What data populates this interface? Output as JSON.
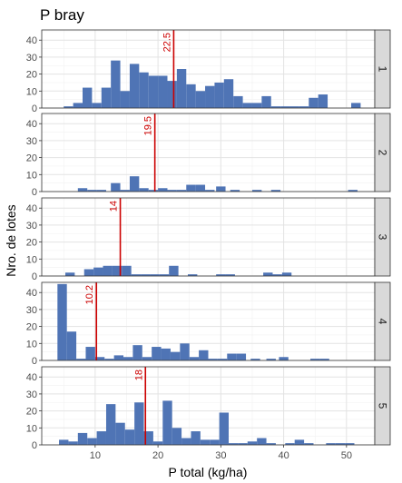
{
  "chart_data": {
    "type": "bar",
    "title": "P bray",
    "xlabel": "P total (kg/ha)",
    "ylabel": "Nro. de lotes",
    "xlim": [
      1.5,
      54.5
    ],
    "x_ticks": [
      10,
      20,
      30,
      40,
      50
    ],
    "ylim": [
      0,
      46
    ],
    "y_ticks": [
      0,
      10,
      20,
      30,
      40
    ],
    "bin_width": 1.5,
    "bar_color": "#4f74b5",
    "line_color": "#cc0000",
    "strip_color": "#d9d9d9",
    "grid": true,
    "panels": [
      {
        "label": "1",
        "vline": 22.5,
        "vline_label": "22.5",
        "bins": [
          {
            "x": 5.75,
            "count": 1
          },
          {
            "x": 7.25,
            "count": 3
          },
          {
            "x": 8.75,
            "count": 12
          },
          {
            "x": 10.25,
            "count": 3
          },
          {
            "x": 11.75,
            "count": 12
          },
          {
            "x": 13.25,
            "count": 28
          },
          {
            "x": 14.75,
            "count": 10
          },
          {
            "x": 16.25,
            "count": 26
          },
          {
            "x": 17.75,
            "count": 21
          },
          {
            "x": 19.25,
            "count": 19
          },
          {
            "x": 20.75,
            "count": 19
          },
          {
            "x": 22.25,
            "count": 16
          },
          {
            "x": 23.75,
            "count": 23
          },
          {
            "x": 25.25,
            "count": 14
          },
          {
            "x": 26.75,
            "count": 10
          },
          {
            "x": 28.25,
            "count": 13
          },
          {
            "x": 29.75,
            "count": 15
          },
          {
            "x": 31.25,
            "count": 17
          },
          {
            "x": 32.75,
            "count": 7
          },
          {
            "x": 34.25,
            "count": 3
          },
          {
            "x": 35.75,
            "count": 3
          },
          {
            "x": 37.25,
            "count": 7
          },
          {
            "x": 38.75,
            "count": 1
          },
          {
            "x": 40.25,
            "count": 1
          },
          {
            "x": 41.75,
            "count": 1
          },
          {
            "x": 43.25,
            "count": 1
          },
          {
            "x": 44.75,
            "count": 6
          },
          {
            "x": 46.25,
            "count": 8
          },
          {
            "x": 51.5,
            "count": 3
          }
        ]
      },
      {
        "label": "2",
        "vline": 19.5,
        "vline_label": "19.5",
        "bins": [
          {
            "x": 8.0,
            "count": 2
          },
          {
            "x": 9.5,
            "count": 1
          },
          {
            "x": 11.0,
            "count": 1
          },
          {
            "x": 13.25,
            "count": 5
          },
          {
            "x": 14.75,
            "count": 1
          },
          {
            "x": 16.25,
            "count": 9
          },
          {
            "x": 17.75,
            "count": 2
          },
          {
            "x": 19.25,
            "count": 1
          },
          {
            "x": 20.75,
            "count": 2
          },
          {
            "x": 22.25,
            "count": 1
          },
          {
            "x": 23.75,
            "count": 1
          },
          {
            "x": 25.25,
            "count": 4
          },
          {
            "x": 26.75,
            "count": 4
          },
          {
            "x": 28.25,
            "count": 1
          },
          {
            "x": 30.0,
            "count": 3
          },
          {
            "x": 32.25,
            "count": 1
          },
          {
            "x": 35.75,
            "count": 1
          },
          {
            "x": 38.75,
            "count": 1
          },
          {
            "x": 51.0,
            "count": 1
          }
        ]
      },
      {
        "label": "3",
        "vline": 14,
        "vline_label": "14",
        "bins": [
          {
            "x": 6.0,
            "count": 2
          },
          {
            "x": 9.0,
            "count": 4
          },
          {
            "x": 10.5,
            "count": 5
          },
          {
            "x": 12.0,
            "count": 6
          },
          {
            "x": 13.5,
            "count": 6
          },
          {
            "x": 15.0,
            "count": 6
          },
          {
            "x": 16.5,
            "count": 1
          },
          {
            "x": 18.0,
            "count": 1
          },
          {
            "x": 19.5,
            "count": 1
          },
          {
            "x": 21.0,
            "count": 1
          },
          {
            "x": 22.5,
            "count": 6
          },
          {
            "x": 25.5,
            "count": 1
          },
          {
            "x": 30.0,
            "count": 1
          },
          {
            "x": 31.5,
            "count": 1
          },
          {
            "x": 37.5,
            "count": 2
          },
          {
            "x": 39.0,
            "count": 1
          },
          {
            "x": 40.5,
            "count": 2
          }
        ]
      },
      {
        "label": "4",
        "vline": 10.2,
        "vline_label": "10.2",
        "bins": [
          {
            "x": 4.75,
            "count": 45
          },
          {
            "x": 6.25,
            "count": 17
          },
          {
            "x": 7.75,
            "count": 1
          },
          {
            "x": 9.25,
            "count": 8
          },
          {
            "x": 10.75,
            "count": 2
          },
          {
            "x": 12.25,
            "count": 1
          },
          {
            "x": 13.75,
            "count": 3
          },
          {
            "x": 15.25,
            "count": 2
          },
          {
            "x": 16.75,
            "count": 9
          },
          {
            "x": 18.25,
            "count": 2
          },
          {
            "x": 19.75,
            "count": 8
          },
          {
            "x": 21.25,
            "count": 7
          },
          {
            "x": 22.75,
            "count": 5
          },
          {
            "x": 24.25,
            "count": 10
          },
          {
            "x": 25.75,
            "count": 2
          },
          {
            "x": 27.25,
            "count": 6
          },
          {
            "x": 28.75,
            "count": 1
          },
          {
            "x": 30.25,
            "count": 1
          },
          {
            "x": 31.75,
            "count": 4
          },
          {
            "x": 33.25,
            "count": 4
          },
          {
            "x": 35.5,
            "count": 1
          },
          {
            "x": 38.0,
            "count": 1
          },
          {
            "x": 40.0,
            "count": 2
          },
          {
            "x": 45.0,
            "count": 1
          },
          {
            "x": 46.5,
            "count": 1
          }
        ]
      },
      {
        "label": "5",
        "vline": 18,
        "vline_label": "18",
        "bins": [
          {
            "x": 5.0,
            "count": 3
          },
          {
            "x": 6.5,
            "count": 2
          },
          {
            "x": 8.0,
            "count": 7
          },
          {
            "x": 9.5,
            "count": 4
          },
          {
            "x": 11.0,
            "count": 8
          },
          {
            "x": 12.5,
            "count": 24
          },
          {
            "x": 14.0,
            "count": 13
          },
          {
            "x": 15.5,
            "count": 9
          },
          {
            "x": 17.0,
            "count": 25
          },
          {
            "x": 18.5,
            "count": 8
          },
          {
            "x": 20.0,
            "count": 2
          },
          {
            "x": 21.5,
            "count": 26
          },
          {
            "x": 23.0,
            "count": 10
          },
          {
            "x": 24.5,
            "count": 4
          },
          {
            "x": 26.0,
            "count": 8
          },
          {
            "x": 27.5,
            "count": 3
          },
          {
            "x": 29.0,
            "count": 3
          },
          {
            "x": 30.5,
            "count": 19
          },
          {
            "x": 32.0,
            "count": 1
          },
          {
            "x": 33.5,
            "count": 1
          },
          {
            "x": 35.0,
            "count": 2
          },
          {
            "x": 36.5,
            "count": 4
          },
          {
            "x": 38.0,
            "count": 1
          },
          {
            "x": 41.0,
            "count": 1
          },
          {
            "x": 42.5,
            "count": 3
          },
          {
            "x": 44.0,
            "count": 1
          },
          {
            "x": 47.5,
            "count": 1
          },
          {
            "x": 49.0,
            "count": 1
          },
          {
            "x": 50.5,
            "count": 1
          }
        ]
      }
    ]
  }
}
